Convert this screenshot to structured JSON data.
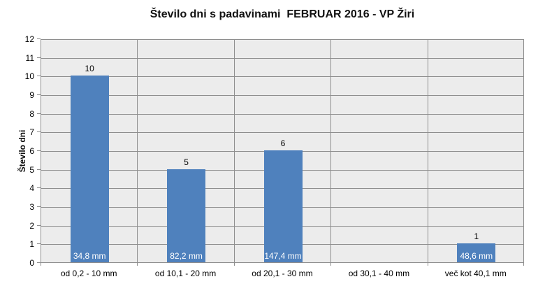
{
  "chart_data": {
    "type": "bar",
    "title": "Število dni s padavinami  FEBRUAR 2016 - VP Žiri",
    "ylabel": "Število dni",
    "xlabel": "",
    "categories": [
      "od 0,2 - 10 mm",
      "od 10,1 - 20 mm",
      "od 20,1 - 30 mm",
      "od 30,1 - 40 mm",
      "več kot 40,1 mm"
    ],
    "values": [
      10,
      5,
      6,
      0,
      1
    ],
    "bar_inner_labels": [
      "34,8 mm",
      "82,2 mm",
      "147,4 mm",
      "",
      "48,6 mm"
    ],
    "ylim": [
      0,
      12
    ],
    "ytick_step": 1,
    "grid": "horizontal unit gridlines plus vertical category-boundary lines",
    "legend": "none",
    "colors": {
      "bar": "#4f81bd",
      "bar_inner_label_text": "#ffffff",
      "plot_background": "#ececec",
      "gridline": "#8e8e8e",
      "text": "#000000",
      "page_background": "#ffffff"
    }
  }
}
